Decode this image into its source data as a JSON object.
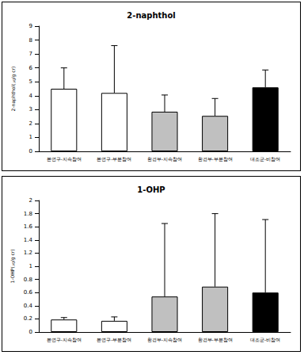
{
  "chart_data": [
    {
      "type": "bar",
      "title": "2-naphthol",
      "ylabel": "2-naphthol(㎍/g cr)",
      "categories": [
        "본연구-지속참여",
        "본연구-부분참여",
        "환경부-지속참여",
        "환경부-부분참여",
        "대조군-비참여"
      ],
      "values": [
        4.5,
        4.2,
        2.85,
        2.55,
        4.6
      ],
      "errors": [
        1.5,
        3.4,
        1.2,
        1.25,
        1.25
      ],
      "colors": [
        "#ffffff",
        "#ffffff",
        "#c0c0c0",
        "#c0c0c0",
        "#000000"
      ],
      "ylim": [
        0,
        9
      ],
      "yticks": [
        0,
        1,
        2,
        3,
        4,
        5,
        6,
        7,
        8,
        9
      ],
      "grid": false
    },
    {
      "type": "bar",
      "title": "1-OHP",
      "ylabel": "1-OHP(㎍/g cr)",
      "categories": [
        "본연구-지속참여",
        "본연구-부분참여",
        "환경부-지속참여",
        "환경부-부분참여",
        "대조군-비참여"
      ],
      "values": [
        0.19,
        0.17,
        0.54,
        0.69,
        0.6
      ],
      "errors": [
        0.03,
        0.06,
        1.11,
        1.11,
        1.11
      ],
      "colors": [
        "#ffffff",
        "#ffffff",
        "#c0c0c0",
        "#c0c0c0",
        "#000000"
      ],
      "ylim": [
        0,
        2
      ],
      "yticks": [
        0,
        0.2,
        0.4,
        0.6,
        0.8,
        1,
        1.2,
        1.4,
        1.6,
        1.8,
        2
      ],
      "grid": false
    }
  ]
}
